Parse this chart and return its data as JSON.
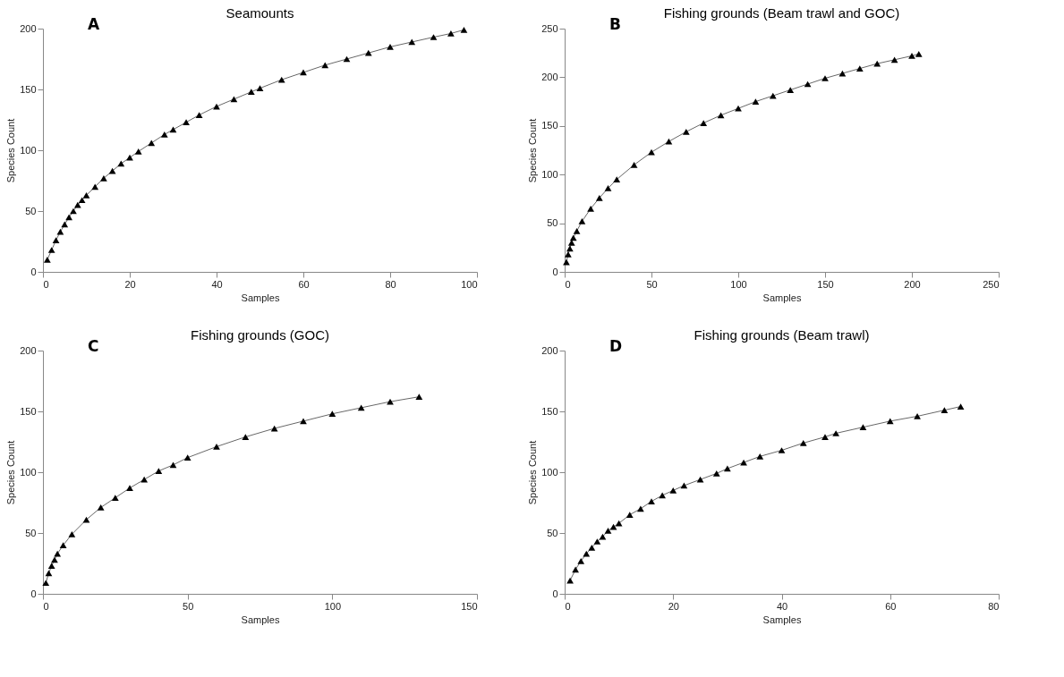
{
  "chart_data": [
    {
      "type": "line",
      "title": "Seamounts",
      "xlabel": "Samples",
      "ylabel": "Species Count",
      "annotations": [
        "A"
      ],
      "marker": "triangle",
      "line_style": "solid",
      "grid": false,
      "xlim": [
        0,
        100
      ],
      "xticks": [
        0,
        20,
        40,
        60,
        80,
        100
      ],
      "ylim": [
        0,
        200
      ],
      "yticks": [
        0,
        50,
        100,
        150,
        200
      ],
      "series": [
        {
          "color": "#000000",
          "x": [
            1,
            2,
            3,
            4,
            5,
            6,
            7,
            8,
            9,
            10,
            12,
            14,
            16,
            18,
            20,
            22,
            25,
            28,
            30,
            33,
            36,
            40,
            44,
            48,
            50,
            55,
            60,
            65,
            70,
            75,
            80,
            85,
            90,
            94,
            97
          ],
          "values": [
            10,
            18,
            26,
            33,
            39,
            45,
            50,
            55,
            59,
            63,
            70,
            77,
            83,
            89,
            94,
            99,
            106,
            113,
            117,
            123,
            129,
            136,
            142,
            148,
            151,
            158,
            164,
            170,
            175,
            180,
            185,
            189,
            193,
            196,
            199
          ]
        }
      ]
    },
    {
      "type": "line",
      "title": "Fishing grounds (Beam trawl and GOC)",
      "xlabel": "Samples",
      "ylabel": "Species Count",
      "annotations": [
        "B"
      ],
      "marker": "triangle",
      "line_style": "solid",
      "grid": false,
      "xlim": [
        0,
        250
      ],
      "xticks": [
        0,
        50,
        100,
        150,
        200,
        250
      ],
      "ylim": [
        0,
        250
      ],
      "yticks": [
        0,
        50,
        100,
        150,
        200,
        250
      ],
      "series": [
        {
          "color": "#000000",
          "x": [
            1,
            2,
            3,
            4,
            5,
            7,
            10,
            15,
            20,
            25,
            30,
            40,
            50,
            60,
            70,
            80,
            90,
            100,
            110,
            120,
            130,
            140,
            150,
            160,
            170,
            180,
            190,
            200,
            204
          ],
          "values": [
            10,
            18,
            24,
            30,
            35,
            42,
            52,
            65,
            76,
            86,
            95,
            110,
            123,
            134,
            144,
            153,
            161,
            168,
            175,
            181,
            187,
            193,
            199,
            204,
            209,
            214,
            218,
            222,
            224
          ]
        }
      ]
    },
    {
      "type": "line",
      "title": "Fishing grounds (GOC)",
      "xlabel": "Samples",
      "ylabel": "Species Count",
      "annotations": [
        "C"
      ],
      "marker": "triangle",
      "line_style": "solid",
      "grid": false,
      "xlim": [
        0,
        150
      ],
      "xticks": [
        0,
        50,
        100,
        150
      ],
      "ylim": [
        0,
        200
      ],
      "yticks": [
        0,
        50,
        100,
        150,
        200
      ],
      "series": [
        {
          "color": "#000000",
          "x": [
            1,
            2,
            3,
            4,
            5,
            7,
            10,
            15,
            20,
            25,
            30,
            35,
            40,
            45,
            50,
            60,
            70,
            80,
            90,
            100,
            110,
            120,
            130
          ],
          "values": [
            9,
            17,
            23,
            28,
            33,
            40,
            49,
            61,
            71,
            79,
            87,
            94,
            101,
            106,
            112,
            121,
            129,
            136,
            142,
            148,
            153,
            158,
            162
          ]
        }
      ]
    },
    {
      "type": "line",
      "title": "Fishing grounds (Beam trawl)",
      "xlabel": "Samples",
      "ylabel": "Species Count",
      "annotations": [
        "D"
      ],
      "marker": "triangle",
      "line_style": "solid",
      "grid": false,
      "xlim": [
        0,
        80
      ],
      "xticks": [
        0,
        20,
        40,
        60,
        80
      ],
      "ylim": [
        0,
        200
      ],
      "yticks": [
        0,
        50,
        100,
        150,
        200
      ],
      "series": [
        {
          "color": "#000000",
          "x": [
            1,
            2,
            3,
            4,
            5,
            6,
            7,
            8,
            9,
            10,
            12,
            14,
            16,
            18,
            20,
            22,
            25,
            28,
            30,
            33,
            36,
            40,
            44,
            48,
            50,
            55,
            60,
            65,
            70,
            73
          ],
          "values": [
            11,
            20,
            27,
            33,
            38,
            43,
            47,
            52,
            55,
            58,
            65,
            70,
            76,
            81,
            85,
            89,
            94,
            99,
            103,
            108,
            113,
            118,
            124,
            129,
            132,
            137,
            142,
            146,
            151,
            154
          ]
        }
      ]
    }
  ]
}
